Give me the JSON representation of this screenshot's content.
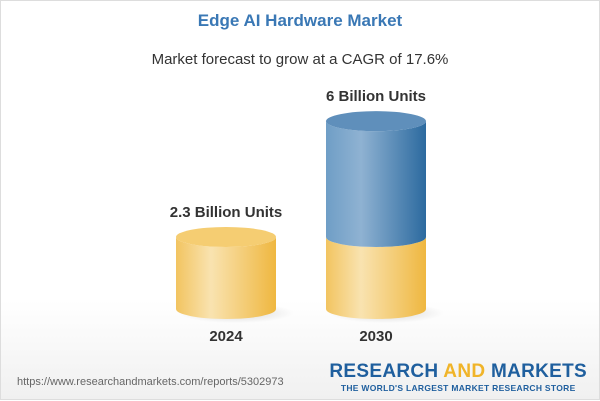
{
  "header": {
    "title": "Edge AI Hardware Market",
    "subtitle": "Market forecast to grow at a CAGR of 17.6%"
  },
  "chart_data": {
    "type": "bar",
    "style": "3d-cylinder",
    "categories": [
      "2024",
      "2030"
    ],
    "values": [
      2.3,
      6
    ],
    "unit": "Billion Units",
    "data_labels": [
      "2.3 Billion Units",
      "6 Billion Units"
    ],
    "colors": {
      "base": "#f3c45a",
      "growth": "#3f7bb0"
    }
  },
  "footer": {
    "url": "https://www.researchandmarkets.com/reports/5302973",
    "logo_part1": "RESEARCH ",
    "logo_part2": "AND",
    "logo_part3": " MARKETS",
    "tagline": "THE WORLD'S LARGEST MARKET RESEARCH STORE"
  }
}
